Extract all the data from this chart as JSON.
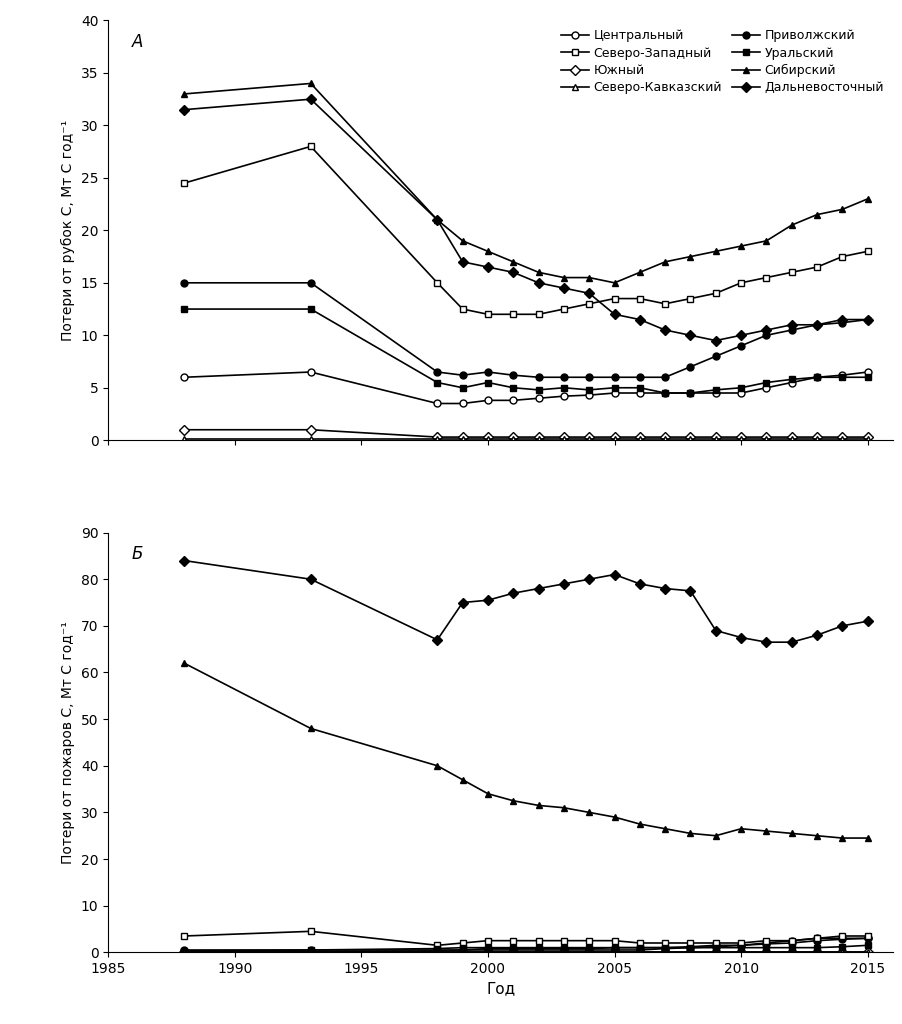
{
  "years_sparse": [
    1988,
    1993
  ],
  "years_dense": [
    1998,
    1999,
    2000,
    2001,
    2002,
    2003,
    2004,
    2005,
    2006,
    2007,
    2008,
    2009,
    2010,
    2011,
    2012,
    2013,
    2014,
    2015
  ],
  "panel_A": {
    "ylabel": "Потери от рубок С, Мт С год⁻¹",
    "ylim": [
      0,
      40
    ],
    "yticks": [
      0,
      5,
      10,
      15,
      20,
      25,
      30,
      35,
      40
    ],
    "label": "А",
    "series": {
      "Центральный": {
        "sparse": [
          6.0,
          6.5
        ],
        "dense": [
          3.5,
          3.5,
          3.8,
          3.8,
          4.0,
          4.2,
          4.3,
          4.5,
          4.5,
          4.5,
          4.5,
          4.5,
          4.5,
          5.0,
          5.5,
          6.0,
          6.2,
          6.5
        ],
        "marker": "o",
        "color": "#000000",
        "mfc": "white"
      },
      "Южный": {
        "sparse": [
          1.0,
          1.0
        ],
        "dense": [
          0.3,
          0.3,
          0.3,
          0.3,
          0.3,
          0.3,
          0.3,
          0.3,
          0.3,
          0.3,
          0.3,
          0.3,
          0.3,
          0.3,
          0.3,
          0.3,
          0.3,
          0.3
        ],
        "marker": "D",
        "color": "#000000",
        "mfc": "white"
      },
      "Приволжский": {
        "sparse": [
          15.0,
          15.0
        ],
        "dense": [
          6.5,
          6.2,
          6.5,
          6.2,
          6.0,
          6.0,
          6.0,
          6.0,
          6.0,
          6.0,
          7.0,
          8.0,
          9.0,
          10.0,
          10.5,
          11.0,
          11.2,
          11.5
        ],
        "marker": "o",
        "color": "#000000",
        "mfc": "#000000"
      },
      "Сибирский": {
        "sparse": [
          33.0,
          34.0
        ],
        "dense": [
          21.0,
          19.0,
          18.0,
          17.0,
          16.0,
          15.5,
          15.5,
          15.0,
          16.0,
          17.0,
          17.5,
          18.0,
          18.5,
          19.0,
          20.5,
          21.5,
          22.0,
          23.0
        ],
        "marker": "^",
        "color": "#000000",
        "mfc": "#000000"
      },
      "Северо-Западный": {
        "sparse": [
          24.5,
          28.0
        ],
        "dense": [
          15.0,
          12.5,
          12.0,
          12.0,
          12.0,
          12.5,
          13.0,
          13.5,
          13.5,
          13.0,
          13.5,
          14.0,
          15.0,
          15.5,
          16.0,
          16.5,
          17.5,
          18.0
        ],
        "marker": "s",
        "color": "#000000",
        "mfc": "white"
      },
      "Северо-Кавказский": {
        "sparse": [
          0.1,
          0.1
        ],
        "dense": [
          0.1,
          0.1,
          0.1,
          0.1,
          0.1,
          0.1,
          0.1,
          0.1,
          0.1,
          0.1,
          0.1,
          0.1,
          0.1,
          0.1,
          0.1,
          0.1,
          0.1,
          0.1
        ],
        "marker": "^",
        "color": "#000000",
        "mfc": "white"
      },
      "Уральский": {
        "sparse": [
          12.5,
          12.5
        ],
        "dense": [
          5.5,
          5.0,
          5.5,
          5.0,
          4.8,
          5.0,
          4.8,
          5.0,
          5.0,
          4.5,
          4.5,
          4.8,
          5.0,
          5.5,
          5.8,
          6.0,
          6.0,
          6.0
        ],
        "marker": "s",
        "color": "#000000",
        "mfc": "#000000"
      },
      "Дальневосточный": {
        "sparse": [
          31.5,
          32.5
        ],
        "dense": [
          21.0,
          17.0,
          16.5,
          16.0,
          15.0,
          14.5,
          14.0,
          12.0,
          11.5,
          10.5,
          10.0,
          9.5,
          10.0,
          10.5,
          11.0,
          11.0,
          11.5,
          11.5
        ],
        "marker": "D",
        "color": "#000000",
        "mfc": "#000000"
      }
    }
  },
  "panel_B": {
    "ylabel": "Потери от пожаров С, Мт С год⁻¹",
    "ylim": [
      0,
      90
    ],
    "yticks": [
      0,
      10,
      20,
      30,
      40,
      50,
      60,
      70,
      80,
      90
    ],
    "label": "Б",
    "series": {
      "Центральный": {
        "sparse": [
          0.2,
          0.2
        ],
        "dense": [
          0.3,
          0.5,
          0.5,
          0.5,
          0.5,
          0.5,
          0.5,
          0.5,
          0.5,
          0.8,
          1.0,
          1.2,
          1.5,
          2.0,
          2.5,
          3.0,
          3.0,
          3.0
        ],
        "marker": "o",
        "color": "#000000",
        "mfc": "white"
      },
      "Южный": {
        "sparse": [
          0.1,
          0.1
        ],
        "dense": [
          0.1,
          0.1,
          0.1,
          0.1,
          0.1,
          0.1,
          0.1,
          0.1,
          0.1,
          0.1,
          0.1,
          0.1,
          0.1,
          0.1,
          0.1,
          0.1,
          0.1,
          0.1
        ],
        "marker": "D",
        "color": "#000000",
        "mfc": "white"
      },
      "Приволжский": {
        "sparse": [
          0.5,
          0.5
        ],
        "dense": [
          0.5,
          0.5,
          0.8,
          0.8,
          0.8,
          0.8,
          0.8,
          1.0,
          1.0,
          1.0,
          1.2,
          1.5,
          1.5,
          1.8,
          2.0,
          2.5,
          2.8,
          3.0
        ],
        "marker": "o",
        "color": "#000000",
        "mfc": "#000000"
      },
      "Сибирский": {
        "sparse": [
          62.0,
          48.0
        ],
        "dense": [
          40.0,
          37.0,
          34.0,
          32.5,
          31.5,
          31.0,
          30.0,
          29.0,
          27.5,
          26.5,
          25.5,
          25.0,
          26.5,
          26.0,
          25.5,
          25.0,
          24.5,
          24.5
        ],
        "marker": "^",
        "color": "#000000",
        "mfc": "#000000"
      },
      "Северо-Западный": {
        "sparse": [
          3.5,
          4.5
        ],
        "dense": [
          1.5,
          2.0,
          2.5,
          2.5,
          2.5,
          2.5,
          2.5,
          2.5,
          2.0,
          2.0,
          2.0,
          2.0,
          2.0,
          2.5,
          2.5,
          3.0,
          3.5,
          3.5
        ],
        "marker": "s",
        "color": "#000000",
        "mfc": "white"
      },
      "Северо-Кавказский": {
        "sparse": [
          0.05,
          0.05
        ],
        "dense": [
          0.05,
          0.05,
          0.05,
          0.05,
          0.05,
          0.05,
          0.05,
          0.05,
          0.05,
          0.05,
          0.05,
          0.05,
          0.05,
          0.05,
          0.05,
          0.05,
          0.05,
          0.05
        ],
        "marker": "^",
        "color": "#000000",
        "mfc": "white"
      },
      "Уральский": {
        "sparse": [
          0.3,
          0.5
        ],
        "dense": [
          0.8,
          1.0,
          1.0,
          1.0,
          1.0,
          1.0,
          1.0,
          1.0,
          1.0,
          1.0,
          1.0,
          1.0,
          1.0,
          1.0,
          1.0,
          1.0,
          1.2,
          1.5
        ],
        "marker": "s",
        "color": "#000000",
        "mfc": "#000000"
      },
      "Дальневосточный": {
        "sparse": [
          84.0,
          80.0
        ],
        "dense": [
          67.0,
          75.0,
          75.5,
          77.0,
          78.0,
          79.0,
          80.0,
          81.0,
          79.0,
          78.0,
          77.5,
          69.0,
          67.5,
          66.5,
          66.5,
          68.0,
          70.0,
          71.0
        ],
        "marker": "D",
        "color": "#000000",
        "mfc": "#000000"
      }
    }
  },
  "legend_order_col1": [
    "Центральный",
    "Южный",
    "Приволжский",
    "Сибирский"
  ],
  "legend_order_col2": [
    "Северо-Западный",
    "Северо-Кавказский",
    "Уральский",
    "Дальневосточный"
  ],
  "xlabel": "Год",
  "xlim": [
    1985,
    2016
  ],
  "xticks": [
    1985,
    1990,
    1995,
    2000,
    2005,
    2010,
    2015
  ],
  "background_color": "#ffffff",
  "markersize": 5,
  "linewidth": 1.2
}
